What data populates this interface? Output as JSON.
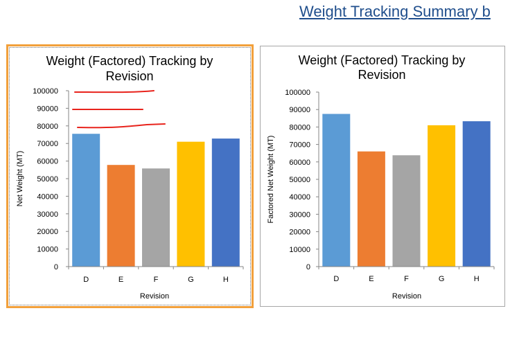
{
  "page": {
    "title": "Weight Tracking Summary b"
  },
  "chart_data": [
    {
      "type": "bar",
      "title_lines": [
        "Weight (Factored) Tracking by",
        "Revision"
      ],
      "xlabel": "Revision",
      "ylabel": "Net Weight (MT)",
      "categories": [
        "D",
        "E",
        "F",
        "G",
        "H"
      ],
      "values": [
        75500,
        57800,
        55800,
        71000,
        72800
      ],
      "colors": [
        "#5b9bd5",
        "#ed7d31",
        "#a5a5a5",
        "#ffc000",
        "#4472c4"
      ],
      "ylim": [
        0,
        100000
      ],
      "yticks": [
        "0",
        "10000",
        "20000",
        "30000",
        "40000",
        "50000",
        "60000",
        "70000",
        "80000",
        "90000",
        "100000"
      ],
      "selected": true,
      "annotations": "hand-drawn red lines near 100000, 90000 and 80000 gridlines"
    },
    {
      "type": "bar",
      "title_lines": [
        "Weight (Factored) Tracking by",
        "Revision"
      ],
      "xlabel": "Revision",
      "ylabel": "Factored Net Weight (MT)",
      "categories": [
        "D",
        "E",
        "F",
        "G",
        "H"
      ],
      "values": [
        87500,
        66000,
        63800,
        81000,
        83300
      ],
      "colors": [
        "#5b9bd5",
        "#ed7d31",
        "#a5a5a5",
        "#ffc000",
        "#4472c4"
      ],
      "ylim": [
        0,
        100000
      ],
      "yticks": [
        "0",
        "10000",
        "20000",
        "30000",
        "40000",
        "50000",
        "60000",
        "70000",
        "80000",
        "90000",
        "100000"
      ],
      "selected": false
    }
  ]
}
